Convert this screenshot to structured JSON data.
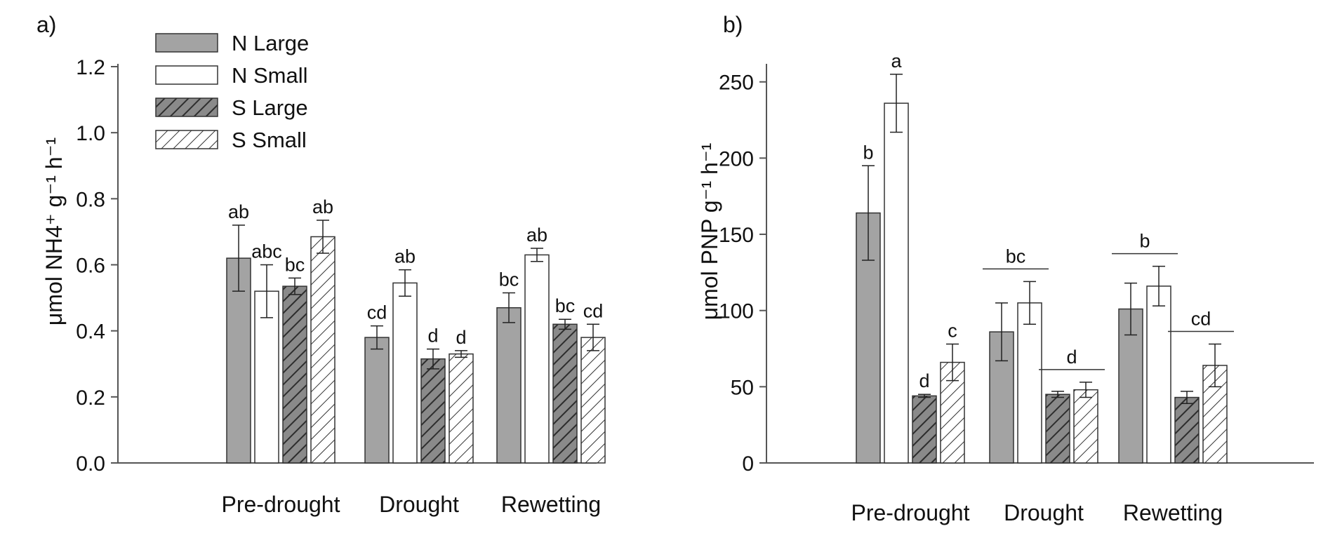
{
  "chart_data": [
    {
      "panel_label": "a)",
      "type": "bar",
      "ylabel": "μmol NH4⁺ g⁻¹ h⁻¹",
      "ylim": [
        0,
        1.2
      ],
      "yticks": [
        "0.0",
        "0.2",
        "0.4",
        "0.6",
        "0.8",
        "1.0",
        "1.2"
      ],
      "categories": [
        "Pre-drought",
        "Drought",
        "Rewetting"
      ],
      "legend": {
        "placement": "top-left",
        "entries": [
          "N Large",
          "N Small",
          "S Large",
          "S Small"
        ]
      },
      "series": [
        {
          "name": "N Large",
          "fill": "#a3a3a3",
          "hatch": false,
          "values": [
            0.62,
            0.38,
            0.47
          ],
          "errors": [
            0.1,
            0.035,
            0.045
          ],
          "letters": [
            "ab",
            "cd",
            "bc"
          ]
        },
        {
          "name": "N Small",
          "fill": "#ffffff",
          "hatch": false,
          "values": [
            0.52,
            0.545,
            0.63
          ],
          "errors": [
            0.08,
            0.04,
            0.02
          ],
          "letters": [
            "abc",
            "ab",
            "ab"
          ]
        },
        {
          "name": "S Large",
          "fill": "#a3a3a3",
          "hatch": true,
          "values": [
            0.535,
            0.315,
            0.42
          ],
          "errors": [
            0.025,
            0.03,
            0.015
          ],
          "letters": [
            "bc",
            "d",
            "bc"
          ]
        },
        {
          "name": "S Small",
          "fill": "#ffffff",
          "hatch": true,
          "values": [
            0.685,
            0.33,
            0.38
          ],
          "errors": [
            0.05,
            0.01,
            0.04
          ],
          "letters": [
            "ab",
            "d",
            "cd"
          ]
        }
      ],
      "group_letters": []
    },
    {
      "panel_label": "b)",
      "type": "bar",
      "ylabel": "μmol PNP g⁻¹ h⁻¹",
      "ylim": [
        0,
        260
      ],
      "yticks": [
        "0",
        "50",
        "100",
        "150",
        "200",
        "250"
      ],
      "categories": [
        "Pre-drought",
        "Drought",
        "Rewetting"
      ],
      "series": [
        {
          "name": "N Large",
          "fill": "#a3a3a3",
          "hatch": false,
          "values": [
            164,
            86,
            101
          ],
          "errors": [
            31,
            19,
            17
          ],
          "letters": [
            "b",
            "",
            ""
          ]
        },
        {
          "name": "N Small",
          "fill": "#ffffff",
          "hatch": false,
          "values": [
            236,
            105,
            116
          ],
          "errors": [
            19,
            14,
            13
          ],
          "letters": [
            "a",
            "",
            ""
          ]
        },
        {
          "name": "S Large",
          "fill": "#a3a3a3",
          "hatch": true,
          "values": [
            44,
            45,
            43
          ],
          "errors": [
            1,
            2,
            4
          ],
          "letters": [
            "d",
            "",
            ""
          ]
        },
        {
          "name": "S Small",
          "fill": "#ffffff",
          "hatch": true,
          "values": [
            66,
            48,
            64
          ],
          "errors": [
            12,
            5,
            14
          ],
          "letters": [
            "c",
            "",
            ""
          ]
        }
      ],
      "group_letters": [
        {
          "category": 1,
          "series_from": 0,
          "series_to": 1,
          "letter": "bc"
        },
        {
          "category": 1,
          "series_from": 2,
          "series_to": 3,
          "letter": "d"
        },
        {
          "category": 2,
          "series_from": 0,
          "series_to": 1,
          "letter": "b"
        },
        {
          "category": 2,
          "series_from": 2,
          "series_to": 3,
          "letter": "cd"
        }
      ]
    }
  ]
}
